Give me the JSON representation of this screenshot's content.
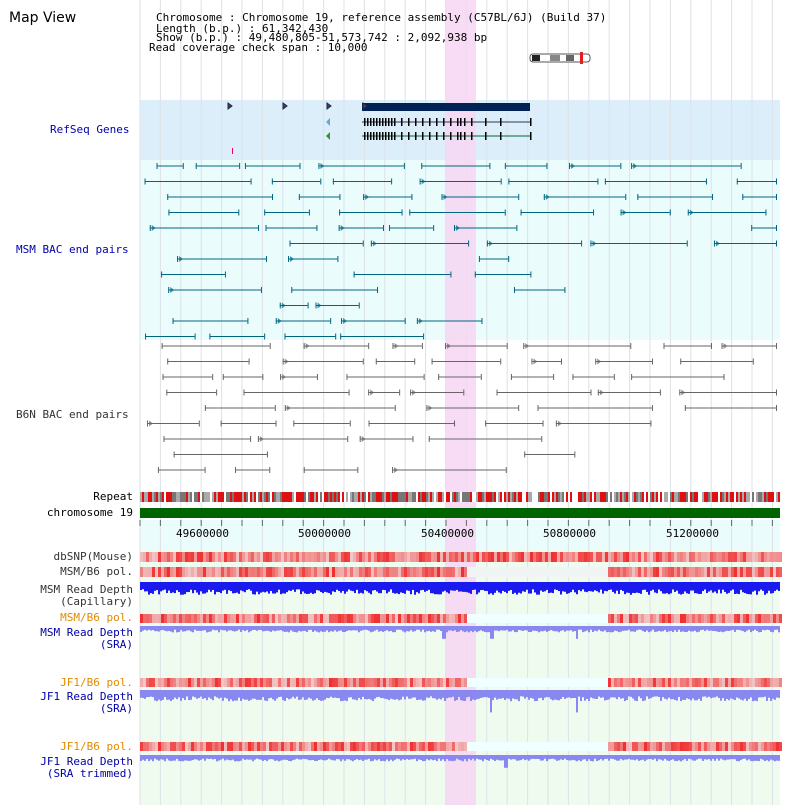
{
  "title": "Map View",
  "info": {
    "chromosome_line": "Chromosome      : Chromosome 19, reference assembly (C57BL/6J) (Build 37)",
    "length_line": " Length (b.p.) : 61,342,430",
    "show_line": "  Show (b.p.) : 49,480,805-51,573,742 : 2,092,938 bp",
    "coverage_line": "Read coverage check span : 10,000"
  },
  "tracks": {
    "refseq": "RefSeq Genes",
    "msm_bac": "MSM BAC end pairs",
    "b6n_bac": "B6N BAC end pairs",
    "repeat": "Repeat",
    "chromosome": "chromosome 19",
    "dbsnp": "dbSNP(Mouse)",
    "msm_b6_pol_1": "MSM/B6 pol.",
    "msm_depth_cap_1": "MSM Read Depth",
    "msm_depth_cap_2": "(Capillary)",
    "msm_b6_pol_2": "MSM/B6 pol.",
    "msm_depth_sra_1": "MSM Read Depth",
    "msm_depth_sra_2": "(SRA)",
    "jf1_b6_pol_1": "JF1/B6 pol.",
    "jf1_depth_sra_1": "JF1 Read Depth",
    "jf1_depth_sra_2": "(SRA)",
    "jf1_b6_pol_2": "JF1/B6 pol.",
    "jf1_depth_trim_1": "JF1 Read Depth",
    "jf1_depth_trim_2": "(SRA trimmed)"
  },
  "ruler": {
    "ticks": [
      "49600000",
      "50000000",
      "50400000",
      "50800000",
      "51200000"
    ]
  },
  "colors": {
    "refseq_bg": "#dbeefa",
    "bac_bg": "#eafcfc",
    "highlight": "#f7d6f3",
    "chromosome": "#006400",
    "gene": "#002255",
    "msm_line": "#006680",
    "b6n_line": "#666666",
    "depth_blue": "#1a1aee",
    "depth_light": "#8888f0",
    "pol_red": "#e02020"
  }
}
